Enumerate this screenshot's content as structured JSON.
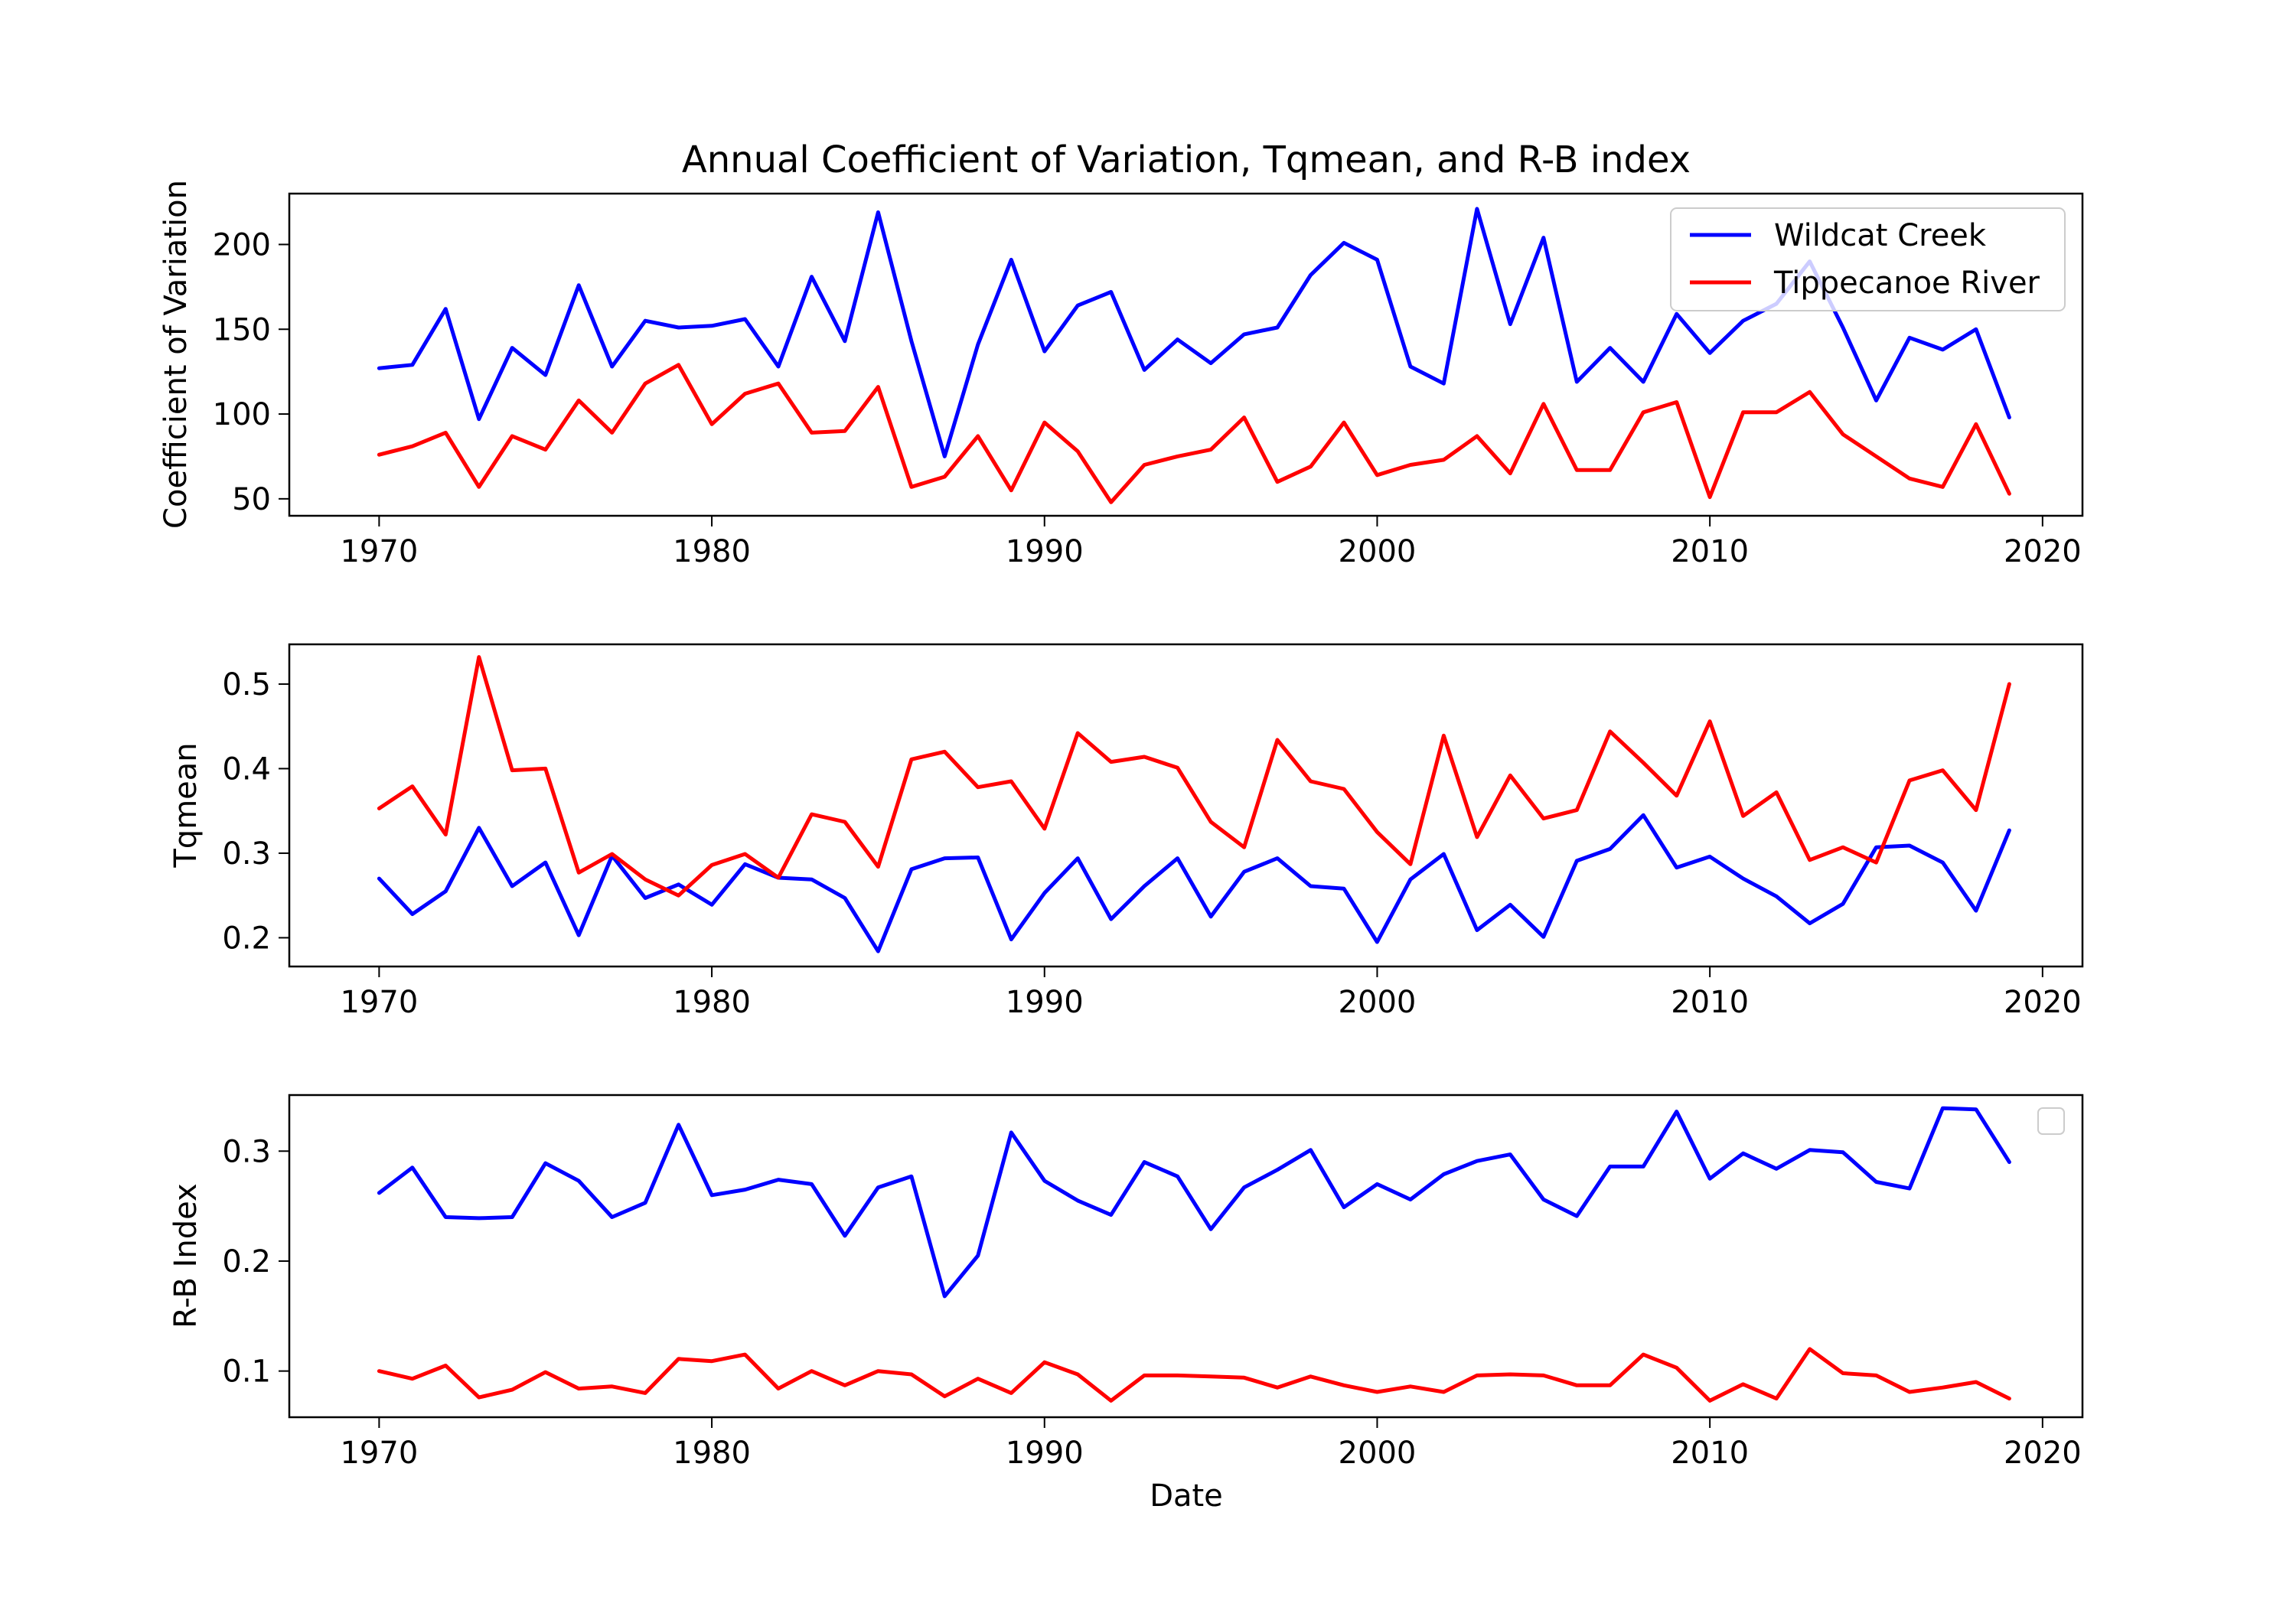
{
  "chart_data": [
    {
      "type": "line",
      "title": "Annual Coefficient of Variation, Tqmean, and R-B index",
      "xlabel": "",
      "ylabel": "Coefficient of Variation",
      "xlim": [
        1967.3,
        2021.2
      ],
      "ylim": [
        40,
        230
      ],
      "xticks": [
        "1970",
        "1980",
        "1990",
        "2000",
        "2010",
        "2020"
      ],
      "yticks": [
        "50",
        "100",
        "150",
        "200"
      ],
      "legend": {
        "placement": "top-right",
        "show": true
      },
      "x": [
        1970,
        1971,
        1972,
        1973,
        1974,
        1975,
        1976,
        1977,
        1978,
        1979,
        1980,
        1981,
        1982,
        1983,
        1984,
        1985,
        1986,
        1987,
        1988,
        1989,
        1990,
        1991,
        1992,
        1993,
        1994,
        1995,
        1996,
        1997,
        1998,
        1999,
        2000,
        2001,
        2002,
        2003,
        2004,
        2005,
        2006,
        2007,
        2008,
        2009,
        2010,
        2011,
        2012,
        2013,
        2014,
        2015,
        2016,
        2017,
        2018,
        2019
      ],
      "series": [
        {
          "name": "Wildcat Creek",
          "color": "#0000ff",
          "values": [
            127,
            129,
            162,
            97,
            139,
            123,
            176,
            128,
            155,
            151,
            152,
            156,
            128,
            181,
            143,
            219,
            143,
            75,
            141,
            191,
            137,
            164,
            172,
            126,
            144,
            130,
            147,
            151,
            182,
            201,
            191,
            128,
            118,
            221,
            153,
            204,
            119,
            139,
            119,
            159,
            136,
            155,
            165,
            190,
            151,
            108,
            145,
            138,
            150,
            98
          ]
        },
        {
          "name": "Tippecanoe River",
          "color": "#ff0000",
          "values": [
            76,
            81,
            89,
            57,
            87,
            79,
            108,
            89,
            118,
            129,
            94,
            112,
            118,
            89,
            90,
            116,
            57,
            63,
            87,
            55,
            95,
            78,
            48,
            70,
            75,
            79,
            98,
            60,
            69,
            95,
            64,
            70,
            73,
            87,
            65,
            106,
            67,
            67,
            101,
            107,
            51,
            101,
            101,
            113,
            88,
            75,
            62,
            57,
            94,
            53
          ]
        }
      ]
    },
    {
      "type": "line",
      "title": "",
      "xlabel": "",
      "ylabel": "Tqmean",
      "xlim": [
        1967.3,
        2021.2
      ],
      "ylim": [
        0.166,
        0.547
      ],
      "xticks": [
        "1970",
        "1980",
        "1990",
        "2000",
        "2010",
        "2020"
      ],
      "yticks": [
        "0.2",
        "0.3",
        "0.4",
        "0.5"
      ],
      "legend": {
        "show": false
      },
      "x": [
        1970,
        1971,
        1972,
        1973,
        1974,
        1975,
        1976,
        1977,
        1978,
        1979,
        1980,
        1981,
        1982,
        1983,
        1984,
        1985,
        1986,
        1987,
        1988,
        1989,
        1990,
        1991,
        1992,
        1993,
        1994,
        1995,
        1996,
        1997,
        1998,
        1999,
        2000,
        2001,
        2002,
        2003,
        2004,
        2005,
        2006,
        2007,
        2008,
        2009,
        2010,
        2011,
        2012,
        2013,
        2014,
        2015,
        2016,
        2017,
        2018,
        2019
      ],
      "series": [
        {
          "name": "Wildcat Creek",
          "color": "#0000ff",
          "values": [
            0.27,
            0.228,
            0.255,
            0.33,
            0.261,
            0.289,
            0.203,
            0.297,
            0.247,
            0.263,
            0.239,
            0.287,
            0.271,
            0.269,
            0.247,
            0.184,
            0.281,
            0.294,
            0.295,
            0.198,
            0.253,
            0.294,
            0.222,
            0.261,
            0.294,
            0.225,
            0.278,
            0.294,
            0.261,
            0.258,
            0.195,
            0.269,
            0.299,
            0.209,
            0.239,
            0.201,
            0.291,
            0.305,
            0.345,
            0.283,
            0.296,
            0.27,
            0.249,
            0.217,
            0.24,
            0.307,
            0.309,
            0.289,
            0.232,
            0.327
          ]
        },
        {
          "name": "Tippecanoe River",
          "color": "#ff0000",
          "values": [
            0.353,
            0.379,
            0.322,
            0.532,
            0.398,
            0.4,
            0.277,
            0.299,
            0.269,
            0.25,
            0.286,
            0.299,
            0.271,
            0.346,
            0.337,
            0.284,
            0.411,
            0.42,
            0.378,
            0.385,
            0.329,
            0.442,
            0.408,
            0.414,
            0.401,
            0.337,
            0.307,
            0.434,
            0.385,
            0.376,
            0.325,
            0.287,
            0.439,
            0.319,
            0.392,
            0.341,
            0.351,
            0.444,
            0.407,
            0.368,
            0.456,
            0.344,
            0.372,
            0.292,
            0.307,
            0.289,
            0.386,
            0.398,
            0.351,
            0.5
          ]
        }
      ]
    },
    {
      "type": "line",
      "title": "",
      "xlabel": "Date",
      "ylabel": "R-B Index",
      "xlim": [
        1967.3,
        2021.2
      ],
      "ylim": [
        0.058,
        0.351
      ],
      "xticks": [
        "1970",
        "1980",
        "1990",
        "2000",
        "2010",
        "2020"
      ],
      "yticks": [
        "0.1",
        "0.2",
        "0.3"
      ],
      "legend": {
        "placement": "top-right",
        "show": true,
        "empty": true
      },
      "x": [
        1970,
        1971,
        1972,
        1973,
        1974,
        1975,
        1976,
        1977,
        1978,
        1979,
        1980,
        1981,
        1982,
        1983,
        1984,
        1985,
        1986,
        1987,
        1988,
        1989,
        1990,
        1991,
        1992,
        1993,
        1994,
        1995,
        1996,
        1997,
        1998,
        1999,
        2000,
        2001,
        2002,
        2003,
        2004,
        2005,
        2006,
        2007,
        2008,
        2009,
        2010,
        2011,
        2012,
        2013,
        2014,
        2015,
        2016,
        2017,
        2018,
        2019
      ],
      "series": [
        {
          "name": "Wildcat Creek",
          "color": "#0000ff",
          "values": [
            0.262,
            0.285,
            0.24,
            0.239,
            0.24,
            0.289,
            0.273,
            0.24,
            0.253,
            0.324,
            0.26,
            0.265,
            0.274,
            0.27,
            0.223,
            0.267,
            0.277,
            0.168,
            0.205,
            0.317,
            0.273,
            0.255,
            0.242,
            0.29,
            0.277,
            0.229,
            0.267,
            0.283,
            0.301,
            0.249,
            0.27,
            0.256,
            0.279,
            0.291,
            0.297,
            0.256,
            0.241,
            0.286,
            0.286,
            0.336,
            0.275,
            0.298,
            0.284,
            0.301,
            0.299,
            0.272,
            0.266,
            0.339,
            0.338,
            0.29
          ]
        },
        {
          "name": "Tippecanoe River",
          "color": "#ff0000",
          "values": [
            0.1,
            0.093,
            0.105,
            0.076,
            0.083,
            0.099,
            0.084,
            0.086,
            0.08,
            0.111,
            0.109,
            0.115,
            0.084,
            0.1,
            0.087,
            0.1,
            0.097,
            0.077,
            0.093,
            0.08,
            0.108,
            0.097,
            0.073,
            0.096,
            0.096,
            0.095,
            0.094,
            0.085,
            0.095,
            0.087,
            0.081,
            0.086,
            0.081,
            0.096,
            0.097,
            0.096,
            0.087,
            0.087,
            0.115,
            0.103,
            0.073,
            0.088,
            0.075,
            0.12,
            0.098,
            0.096,
            0.081,
            0.085,
            0.09,
            0.075
          ]
        }
      ]
    }
  ]
}
